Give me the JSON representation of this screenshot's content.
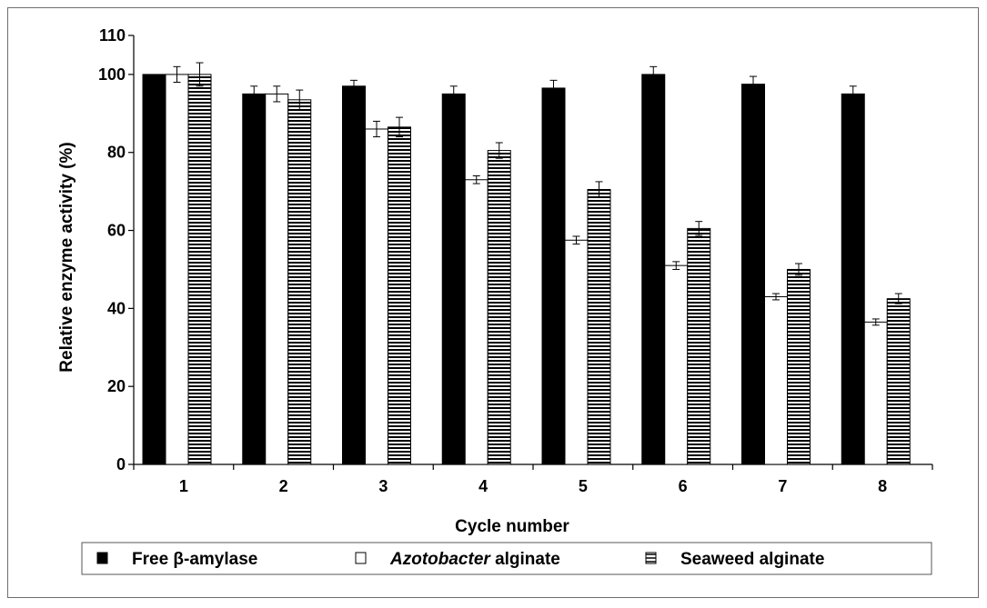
{
  "chart_data": {
    "type": "bar",
    "xlabel": "Cycle number",
    "ylabel": "Relative enzyme activity (%)",
    "ylim": [
      0,
      110
    ],
    "yticks": [
      0,
      20,
      40,
      60,
      80,
      100,
      110
    ],
    "categories": [
      "1",
      "2",
      "3",
      "4",
      "5",
      "6",
      "7",
      "8"
    ],
    "legend_position": "bottom",
    "grid": false,
    "series": [
      {
        "legend_prefix": "Free β-amylase",
        "legend_italic": "",
        "legend_suffix": "",
        "pattern": "solid",
        "color": "#000000",
        "values": [
          100,
          95,
          97,
          95,
          96.5,
          100,
          97.5,
          95
        ],
        "errors": [
          0,
          2,
          1.5,
          2,
          2,
          2,
          2,
          2
        ]
      },
      {
        "legend_prefix": "",
        "legend_italic": "Azotobacter",
        "legend_suffix": " alginate",
        "pattern": "open",
        "color": "#ffffff",
        "values": [
          100,
          95,
          86,
          73,
          57.5,
          51,
          43,
          36.5
        ],
        "errors": [
          2,
          2,
          2,
          1,
          1,
          1,
          0.8,
          0.8
        ]
      },
      {
        "legend_prefix": "Seaweed alginate",
        "legend_italic": "",
        "legend_suffix": "",
        "pattern": "horizontal-stripes",
        "color": "#000000",
        "values": [
          100,
          93.5,
          86.5,
          80.5,
          70.5,
          60.5,
          50,
          42.5
        ],
        "errors": [
          3,
          2.5,
          2.5,
          2,
          2,
          1.8,
          1.5,
          1.3
        ]
      }
    ]
  }
}
